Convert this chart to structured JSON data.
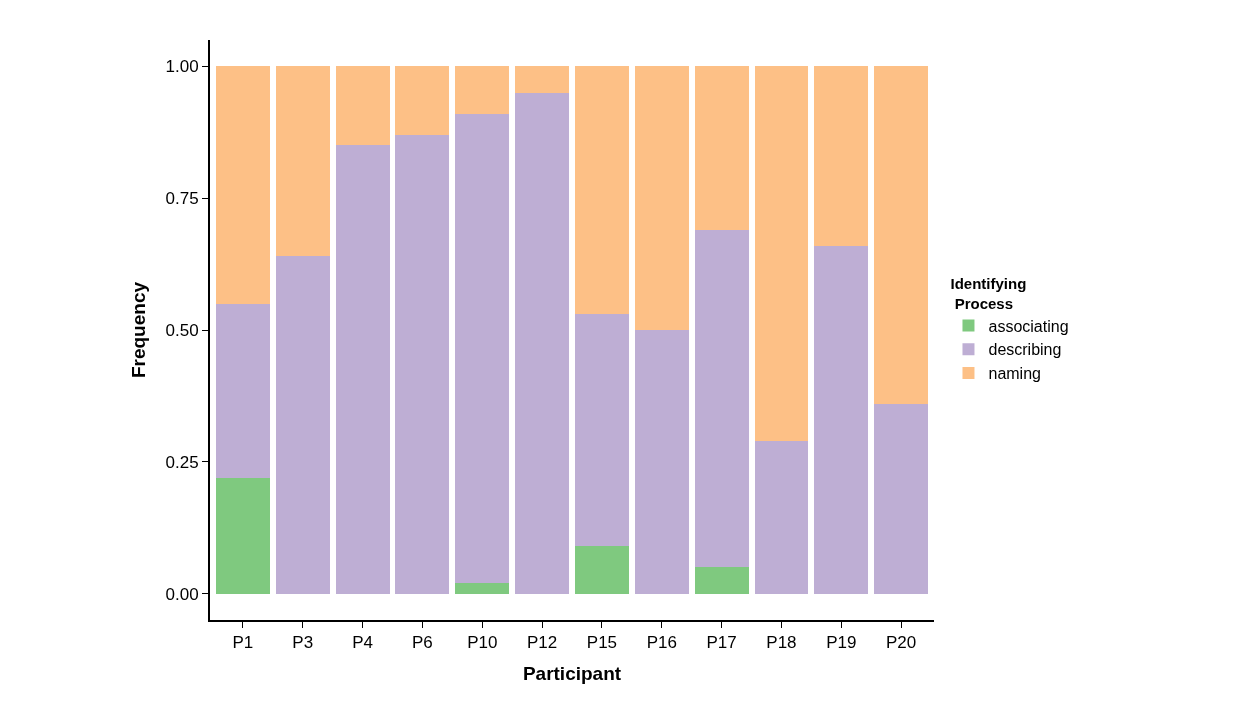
{
  "chart_data": {
    "type": "bar",
    "stacked": true,
    "xlabel": "Participant",
    "ylabel": "Frequency",
    "legend_title": "Identifying\n Process",
    "categories": [
      "P1",
      "P3",
      "P4",
      "P6",
      "P10",
      "P12",
      "P15",
      "P16",
      "P17",
      "P18",
      "P19",
      "P20"
    ],
    "series": [
      {
        "name": "associating",
        "color": "#7fc97f",
        "values": [
          0.22,
          0,
          0,
          0,
          0.02,
          0,
          0.09,
          0,
          0.05,
          0,
          0,
          0
        ]
      },
      {
        "name": "describing",
        "color": "#beaed4",
        "values": [
          0.33,
          0.64,
          0.85,
          0.87,
          0.89,
          0.95,
          0.44,
          0.5,
          0.64,
          0.29,
          0.66,
          0.36
        ]
      },
      {
        "name": "naming",
        "color": "#fdc086",
        "values": [
          0.45,
          0.36,
          0.15,
          0.13,
          0.09,
          0.05,
          0.47,
          0.5,
          0.31,
          0.71,
          0.34,
          0.64
        ]
      }
    ],
    "ylim": [
      -0.05,
      1.05
    ],
    "yticks": [
      {
        "value": 0,
        "label": "0.00"
      },
      {
        "value": 0.25,
        "label": "0.25"
      },
      {
        "value": 0.5,
        "label": "0.50"
      },
      {
        "value": 0.75,
        "label": "0.75"
      },
      {
        "value": 1,
        "label": "1.00"
      }
    ],
    "legend": "right"
  }
}
